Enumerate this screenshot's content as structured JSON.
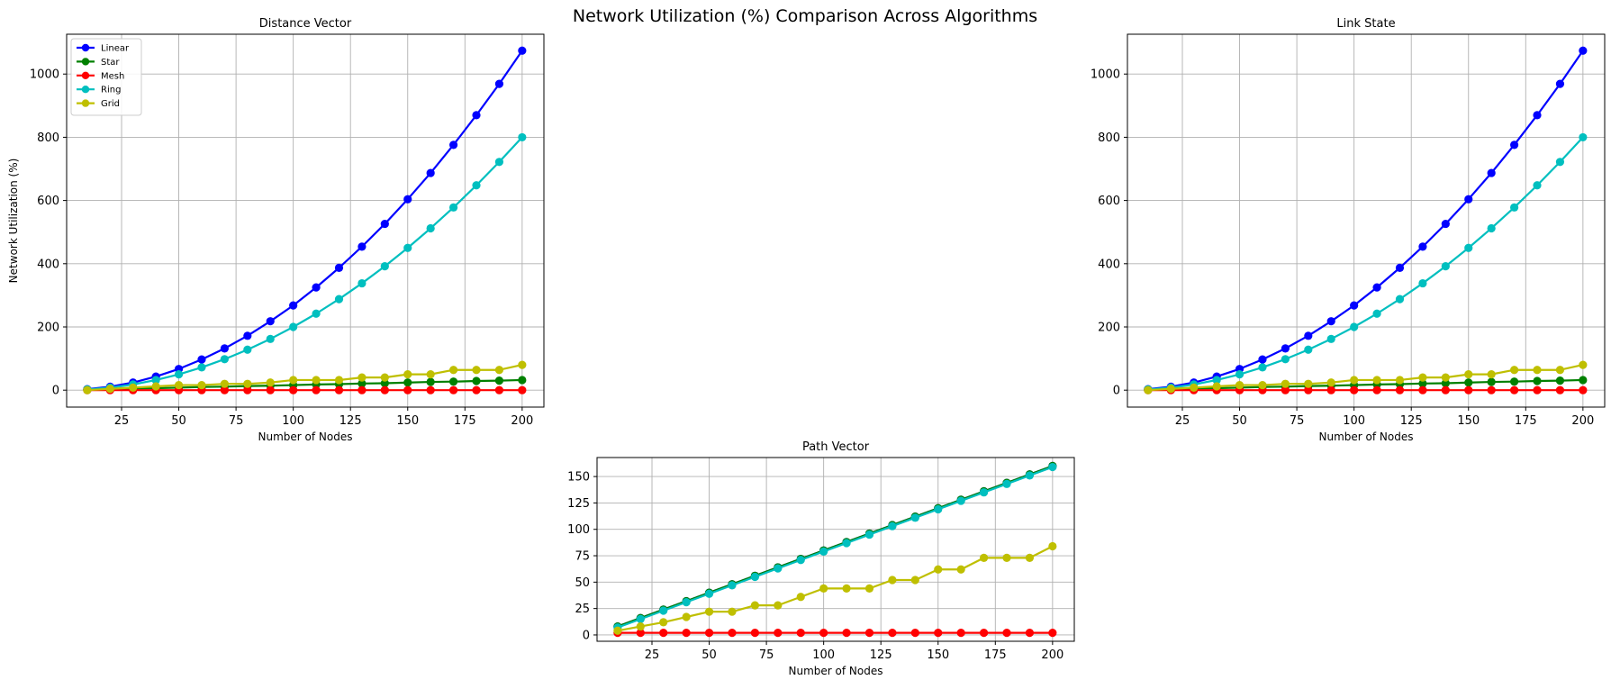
{
  "figure": {
    "title": "Network Utilization (%) Comparison Across Algorithms"
  },
  "colors": {
    "Linear": "#0000ff",
    "Star": "#008000",
    "Mesh": "#ff0000",
    "Ring": "#00bfbf",
    "Grid": "#bfbf00",
    "grid": "#b0b0b0"
  },
  "chart_data": [
    {
      "type": "line",
      "title": "Distance Vector",
      "xlabel": "Number of Nodes",
      "ylabel": "Network Utilization (%)",
      "xlim": [
        1,
        209.5
      ],
      "ylim": [
        -53.6,
        1126
      ],
      "xticks": [
        25,
        50,
        75,
        100,
        125,
        150,
        175,
        200
      ],
      "yticks": [
        0,
        200,
        400,
        600,
        800,
        1000
      ],
      "grid": true,
      "legend": "top-left",
      "x": [
        10,
        20,
        30,
        40,
        50,
        60,
        70,
        80,
        90,
        100,
        110,
        120,
        130,
        140,
        150,
        160,
        170,
        180,
        190,
        200
      ],
      "series": [
        {
          "name": "Linear",
          "values": [
            3,
            11,
            24,
            43,
            67,
            97,
            132,
            172,
            218,
            268,
            325,
            387,
            454,
            526,
            604,
            687,
            776,
            870,
            969,
            1074
          ]
        },
        {
          "name": "Star",
          "values": [
            2,
            3,
            5,
            6,
            8,
            10,
            11,
            13,
            14,
            16,
            18,
            19,
            21,
            22,
            24,
            26,
            27,
            29,
            30,
            32
          ]
        },
        {
          "name": "Mesh",
          "values": [
            0,
            0,
            0,
            0,
            0,
            0,
            0,
            0,
            0,
            0,
            0,
            0,
            0,
            0,
            0,
            0,
            0,
            0,
            0,
            0
          ]
        },
        {
          "name": "Ring",
          "values": [
            2,
            8,
            18,
            32,
            50,
            72,
            98,
            128,
            162,
            200,
            242,
            288,
            338,
            392,
            450,
            512,
            578,
            648,
            722,
            800
          ]
        },
        {
          "name": "Grid",
          "values": [
            0,
            4,
            8,
            12,
            16,
            16,
            20,
            20,
            24,
            32,
            32,
            32,
            40,
            40,
            50,
            50,
            64,
            64,
            64,
            80
          ]
        }
      ]
    },
    {
      "type": "line",
      "title": "Link State",
      "xlabel": "Number of Nodes",
      "ylabel": "",
      "xlim": [
        1,
        209.5
      ],
      "ylim": [
        -53.6,
        1126
      ],
      "xticks": [
        25,
        50,
        75,
        100,
        125,
        150,
        175,
        200
      ],
      "yticks": [
        0,
        200,
        400,
        600,
        800,
        1000
      ],
      "grid": true,
      "x": [
        10,
        20,
        30,
        40,
        50,
        60,
        70,
        80,
        90,
        100,
        110,
        120,
        130,
        140,
        150,
        160,
        170,
        180,
        190,
        200
      ],
      "series": [
        {
          "name": "Linear",
          "values": [
            3,
            11,
            24,
            43,
            67,
            97,
            132,
            172,
            218,
            268,
            325,
            387,
            454,
            526,
            604,
            687,
            776,
            870,
            969,
            1074
          ]
        },
        {
          "name": "Star",
          "values": [
            2,
            3,
            5,
            6,
            8,
            10,
            11,
            13,
            14,
            16,
            18,
            19,
            21,
            22,
            24,
            26,
            27,
            29,
            30,
            32
          ]
        },
        {
          "name": "Mesh",
          "values": [
            0,
            0,
            0,
            0,
            0,
            0,
            0,
            0,
            0,
            0,
            0,
            0,
            0,
            0,
            0,
            0,
            0,
            0,
            0,
            0
          ]
        },
        {
          "name": "Ring",
          "values": [
            2,
            8,
            18,
            32,
            50,
            72,
            98,
            128,
            162,
            200,
            242,
            288,
            338,
            392,
            450,
            512,
            578,
            648,
            722,
            800
          ]
        },
        {
          "name": "Grid",
          "values": [
            0,
            4,
            8,
            12,
            16,
            16,
            20,
            20,
            24,
            32,
            32,
            32,
            40,
            40,
            50,
            50,
            64,
            64,
            64,
            80
          ]
        }
      ]
    },
    {
      "type": "line",
      "title": "Path Vector",
      "xlabel": "Number of Nodes",
      "ylabel": "",
      "xlim": [
        1,
        209.5
      ],
      "ylim": [
        -6,
        168
      ],
      "xticks": [
        25,
        50,
        75,
        100,
        125,
        150,
        175,
        200
      ],
      "yticks": [
        0,
        25,
        50,
        75,
        100,
        125,
        150
      ],
      "grid": true,
      "x": [
        10,
        20,
        30,
        40,
        50,
        60,
        70,
        80,
        90,
        100,
        110,
        120,
        130,
        140,
        150,
        160,
        170,
        180,
        190,
        200
      ],
      "series": [
        {
          "name": "Linear",
          "values": [
            8,
            16,
            24,
            32,
            40,
            48,
            56,
            64,
            72,
            80,
            88,
            96,
            104,
            112,
            120,
            128,
            136,
            144,
            152,
            160
          ]
        },
        {
          "name": "Star",
          "values": [
            8,
            16,
            24,
            32,
            40,
            48,
            56,
            64,
            72,
            80,
            88,
            96,
            104,
            112,
            120,
            128,
            136,
            144,
            152,
            160
          ]
        },
        {
          "name": "Mesh",
          "values": [
            2,
            2,
            2,
            2,
            2,
            2,
            2,
            2,
            2,
            2,
            2,
            2,
            2,
            2,
            2,
            2,
            2,
            2,
            2,
            2
          ]
        },
        {
          "name": "Ring",
          "values": [
            7,
            15,
            23,
            31,
            39,
            47,
            55,
            63,
            71,
            79,
            87,
            95,
            103,
            111,
            119,
            127,
            135,
            143,
            151,
            159
          ]
        },
        {
          "name": "Grid",
          "values": [
            4,
            8,
            12,
            17,
            22,
            22,
            28,
            28,
            36,
            44,
            44,
            44,
            52,
            52,
            62,
            62,
            73,
            73,
            73,
            84
          ]
        }
      ]
    }
  ]
}
